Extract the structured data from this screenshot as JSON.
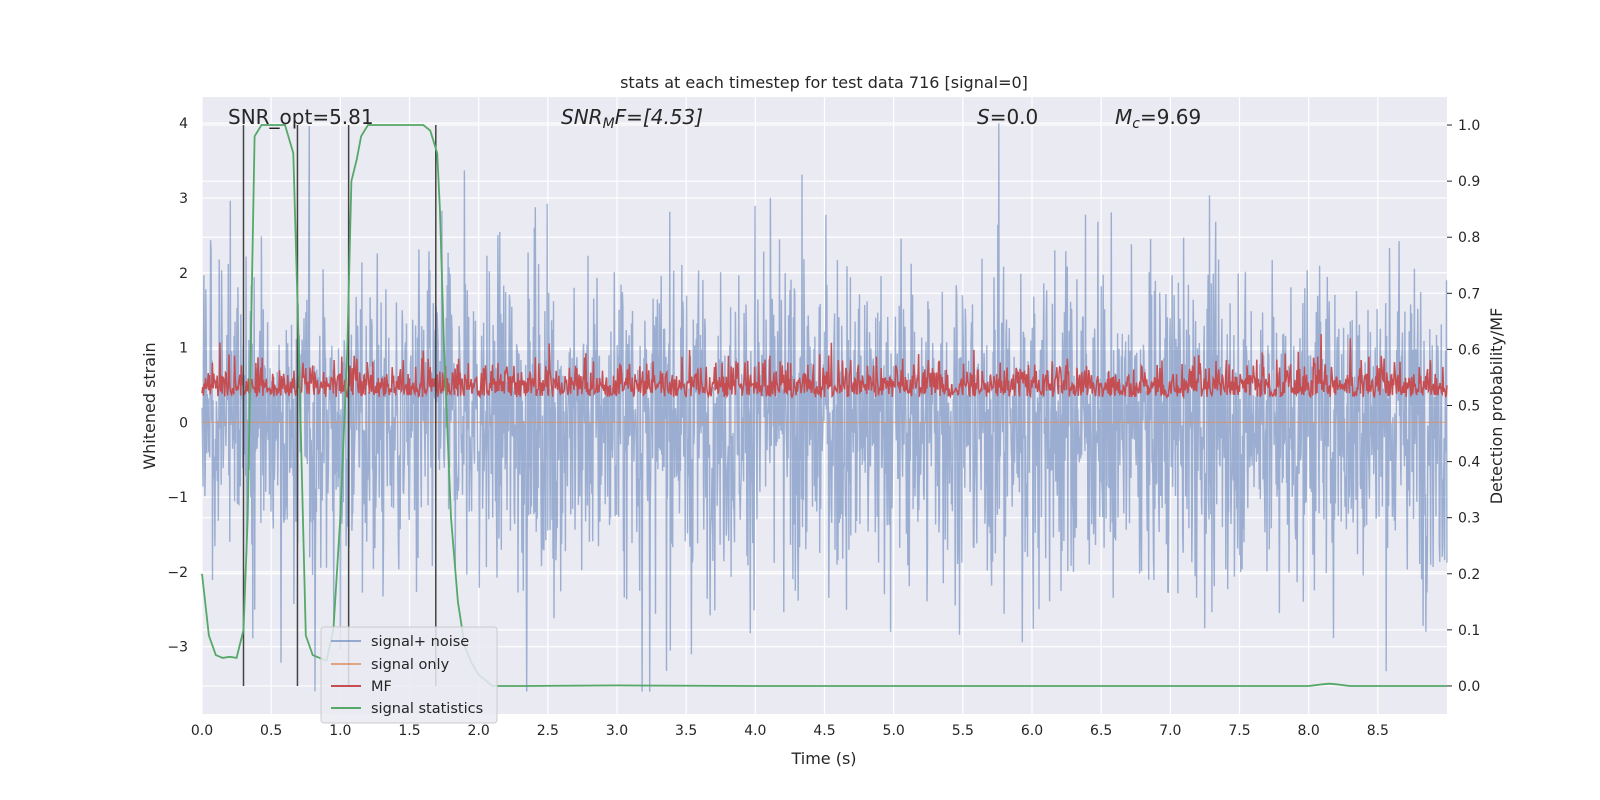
{
  "chart_data": {
    "type": "line",
    "title": "stats at each timestep for test data 716 [signal=0]",
    "xlabel": "Time (s)",
    "ylabel_left": "Whitened strain",
    "ylabel_right": "Detection probability/MF",
    "xlim": [
      0,
      9.0
    ],
    "ylim_left": [
      -3.9,
      4.35
    ],
    "ylim_right": [
      -0.05,
      1.05
    ],
    "xticks": [
      "0.0",
      "0.5",
      "1.0",
      "1.5",
      "2.0",
      "2.5",
      "3.0",
      "3.5",
      "4.0",
      "4.5",
      "5.0",
      "5.5",
      "6.0",
      "6.5",
      "7.0",
      "7.5",
      "8.0",
      "8.5"
    ],
    "yticks_left": [
      "4",
      "3",
      "2",
      "1",
      "0",
      "−1",
      "−2",
      "−3"
    ],
    "yticks_right": [
      "1.0",
      "0.9",
      "0.8",
      "0.7",
      "0.6",
      "0.5",
      "0.4",
      "0.3",
      "0.2",
      "0.1",
      "0.0"
    ],
    "annotations": {
      "snr_opt": "SNR_opt=5.81",
      "snr_mf_main": "SNR",
      "snr_mf_sub": "M",
      "snr_mf_rest": "F=[4.53]",
      "s_main": "S",
      "s_rest": "=0.0",
      "mc_main": "M",
      "mc_sub": "c",
      "mc_rest": "=9.69"
    },
    "grid": true,
    "legend_position": "lower-left",
    "background": "#eaeaf2",
    "colors": {
      "signal_noise": "#4c72b0",
      "signal_only": "#dd8452",
      "mf": "#c44e52",
      "signal_statistics": "#55a868",
      "vlines": "#444444"
    },
    "series": [
      {
        "name": "signal+ noise",
        "axis": "left",
        "kind": "noise",
        "x_range": [
          0,
          9.0
        ],
        "y_typical_range": [
          -3.6,
          4.0
        ]
      },
      {
        "name": "signal only",
        "axis": "left",
        "x": [
          0,
          9.0
        ],
        "y": [
          0,
          0
        ]
      },
      {
        "name": "MF",
        "axis": "right",
        "kind": "noise",
        "x_range": [
          0,
          9.0
        ],
        "y_typical_range": [
          0.47,
          0.63
        ]
      },
      {
        "name": "signal statistics",
        "axis": "right",
        "x": [
          0.0,
          0.05,
          0.1,
          0.15,
          0.2,
          0.25,
          0.3,
          0.33,
          0.38,
          0.43,
          0.5,
          0.6,
          0.66,
          0.7,
          0.75,
          0.8,
          0.85,
          0.9,
          0.95,
          1.0,
          1.05,
          1.08,
          1.12,
          1.15,
          1.2,
          1.3,
          1.4,
          1.5,
          1.6,
          1.65,
          1.7,
          1.72,
          1.75,
          1.8,
          1.85,
          1.9,
          1.95,
          2.0,
          2.05,
          2.1,
          2.3,
          3.0,
          4.0,
          5.0,
          6.0,
          7.0,
          7.5,
          8.0,
          8.1,
          8.15,
          8.2,
          8.3,
          9.0
        ],
        "y": [
          0.2,
          0.09,
          0.055,
          0.05,
          0.052,
          0.05,
          0.1,
          0.3,
          0.98,
          1.0,
          1.0,
          1.0,
          0.95,
          0.6,
          0.09,
          0.055,
          0.05,
          0.045,
          0.1,
          0.3,
          0.6,
          0.9,
          0.94,
          0.98,
          1.0,
          1.0,
          1.0,
          1.0,
          1.0,
          0.99,
          0.95,
          0.85,
          0.6,
          0.3,
          0.15,
          0.07,
          0.04,
          0.02,
          0.01,
          0.0,
          0.0,
          0.001,
          0.0,
          0.0,
          0.0,
          0.0,
          0.0,
          0.0,
          0.003,
          0.004,
          0.003,
          0.0,
          0.0
        ]
      }
    ],
    "vertical_lines_x": [
      0.3,
      0.69,
      1.06,
      1.69
    ]
  }
}
